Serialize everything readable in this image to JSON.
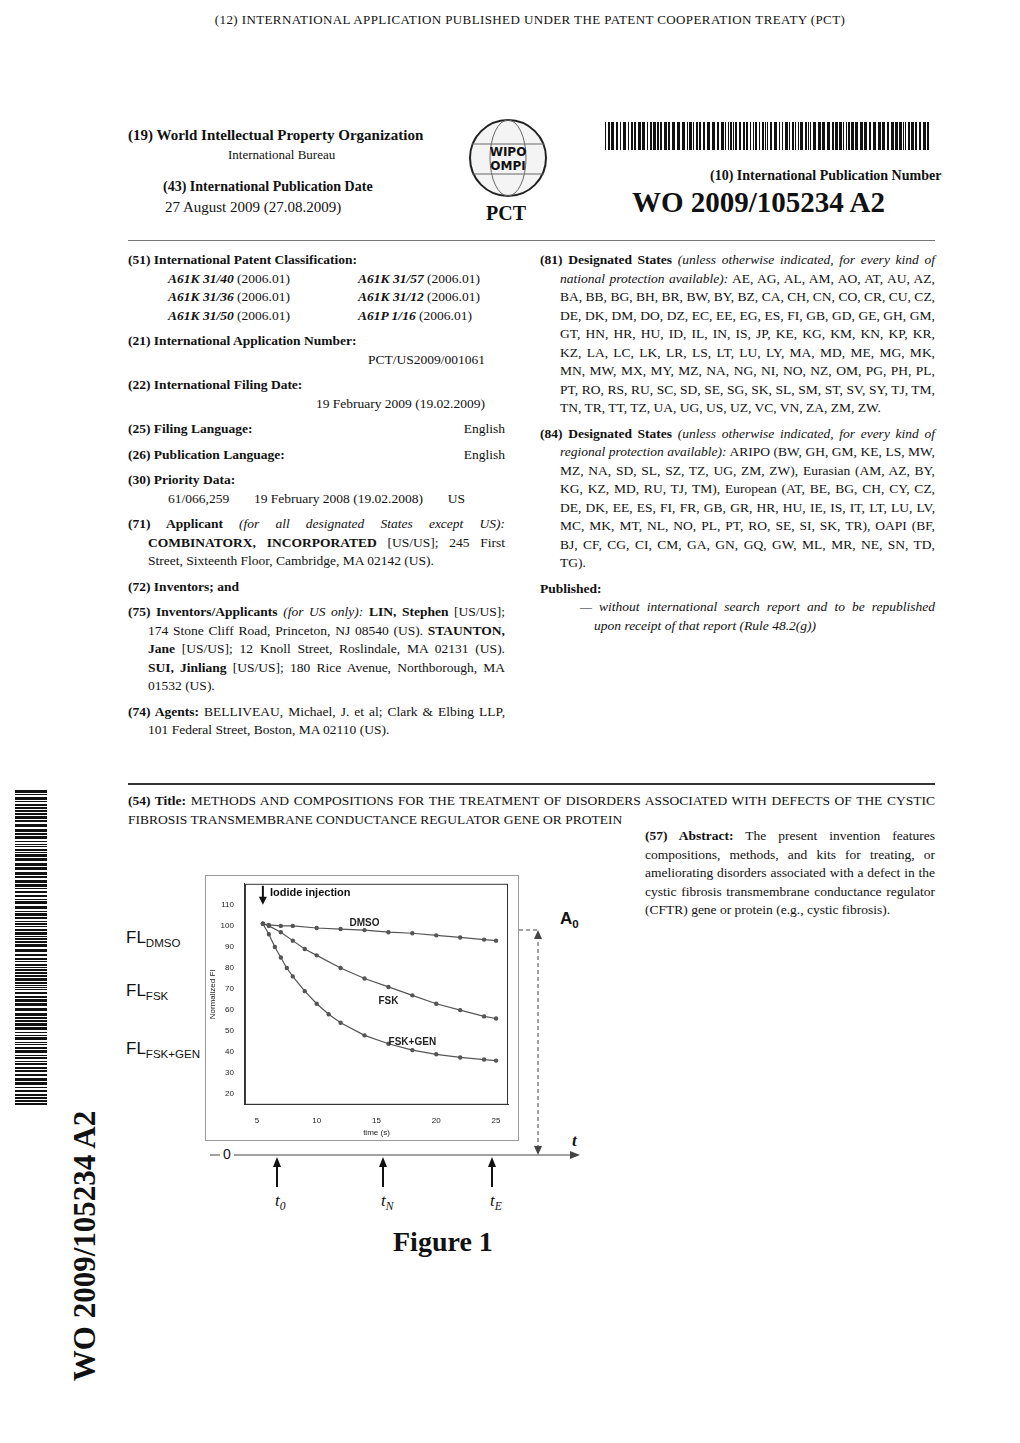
{
  "header": {
    "treaty": "(12) INTERNATIONAL APPLICATION PUBLISHED UNDER THE PATENT COOPERATION TREATY (PCT)",
    "office_num": "(19)",
    "office": "World Intellectual Property Organization",
    "bureau": "International Bureau",
    "logo": [
      "WIPO",
      "OMPI"
    ],
    "logo_caption": "PCT",
    "pub_number_label": "(10) International Publication Number",
    "pub_number": "WO 2009/105234 A2",
    "pub_date_label": "(43) International Publication Date",
    "pub_date": "27 August 2009 (27.08.2009)"
  },
  "left_fields": [
    {
      "num": "(51)",
      "label": "International Patent Classification:",
      "classes": [
        [
          "A61K 31/40",
          "(2006.01)"
        ],
        [
          "A61K 31/57",
          "(2006.01)"
        ],
        [
          "A61K 31/36",
          "(2006.01)"
        ],
        [
          "A61K 31/12",
          "(2006.01)"
        ],
        [
          "A61K 31/50",
          "(2006.01)"
        ],
        [
          "A61P 1/16",
          "(2006.01)"
        ]
      ]
    },
    {
      "num": "(21)",
      "label": "International Application Number:",
      "value": "PCT/US2009/001061"
    },
    {
      "num": "(22)",
      "label": "International Filing Date:",
      "value": "19 February 2009 (19.02.2009)"
    },
    {
      "num": "(25)",
      "label": "Filing Language:",
      "value": "English"
    },
    {
      "num": "(26)",
      "label": "Publication Language:",
      "value": "English"
    },
    {
      "num": "(30)",
      "label": "Priority Data:",
      "values": [
        "61/066,259",
        "19 February 2008 (19.02.2008)",
        "US"
      ]
    },
    {
      "num": "(71)",
      "label": "Applicant",
      "note": "(for all designated States except US):",
      "entries": [
        {
          "name": "COMBINATORX, INCORPORATED",
          "text": "[US/US]; 245 First Street, Sixteenth Floor, Cambridge, MA 02142 (US)."
        }
      ]
    },
    {
      "num": "(72)",
      "label": "Inventors; and"
    },
    {
      "num": "(75)",
      "label": "Inventors/Applicants",
      "note": "(for US only):",
      "entries": [
        {
          "name": "LIN, Stephen",
          "text": "[US/US]; 174 Stone Cliff Road, Princeton, NJ 08540 (US)."
        },
        {
          "name": "STAUNTON, Jane",
          "text": "[US/US]; 12 Knoll Street, Roslindale, MA 02131 (US)."
        },
        {
          "name": "SUI, Jinliang",
          "text": "[US/US]; 180 Rice Avenue, Northborough, MA 01532 (US)."
        }
      ]
    },
    {
      "num": "(74)",
      "label": "Agents:",
      "text": "BELLIVEAU, Michael, J. et al; Clark & Elbing LLP, 101 Federal Street, Boston, MA 02110 (US)."
    }
  ],
  "right_fields": [
    {
      "num": "(81)",
      "label": "Designated States",
      "note": "(unless otherwise indicated, for every kind of national protection available):",
      "text": "AE, AG, AL, AM, AO, AT, AU, AZ, BA, BB, BG, BH, BR, BW, BY, BZ, CA, CH, CN, CO, CR, CU, CZ, DE, DK, DM, DO, DZ, EC, EE, EG, ES, FI, GB, GD, GE, GH, GM, GT, HN, HR, HU, ID, IL, IN, IS, JP, KE, KG, KM, KN, KP, KR, KZ, LA, LC, LK, LR, LS, LT, LU, LY, MA, MD, ME, MG, MK, MN, MW, MX, MY, MZ, NA, NG, NI, NO, NZ, OM, PG, PH, PL, PT, RO, RS, RU, SC, SD, SE, SG, SK, SL, SM, ST, SV, SY, TJ, TM, TN, TR, TT, TZ, UA, UG, US, UZ, VC, VN, ZA, ZM, ZW."
    },
    {
      "num": "(84)",
      "label": "Designated States",
      "note": "(unless otherwise indicated, for every kind of regional protection available):",
      "text": "ARIPO (BW, GH, GM, KE, LS, MW, MZ, NA, SD, SL, SZ, TZ, UG, ZM, ZW), Eurasian (AM, AZ, BY, KG, KZ, MD, RU, TJ, TM), European (AT, BE, BG, CH, CY, CZ, DE, DK, EE, ES, FI, FR, GB, GR, HR, HU, IE, IS, IT, LT, LU, LV, MC, MK, MT, NL, NO, PL, PT, RO, SE, SI, SK, TR), OAPI (BF, BJ, CF, CG, CI, CM, GA, GN, GQ, GW, ML, MR, NE, SN, TD, TG)."
    },
    {
      "label": "Published:",
      "items": [
        "— without international search report and to be republished upon receipt of that report (Rule 48.2(g))"
      ]
    }
  ],
  "title_field": {
    "num": "(54)",
    "label": "Title:",
    "text": "METHODS AND COMPOSITIONS FOR THE TREATMENT OF DISORDERS ASSOCIATED WITH DEFECTS OF THE CYSTIC FIBROSIS TRANSMEMBRANE CONDUCTANCE REGULATOR GENE OR PROTEIN"
  },
  "abstract_field": {
    "num": "(57)",
    "label": "Abstract:",
    "text": "The present invention features compositions, methods, and kits for treating, or ameliorating disorders associated with a defect in the cystic fibrosis transmembrane conductance regulator (CFTR) gene or protein (e.g., cystic fibrosis)."
  },
  "figure": {
    "fl_labels": [
      {
        "main": "FL",
        "sub": "DMSO"
      },
      {
        "main": "FL",
        "sub": "FSK"
      },
      {
        "main": "FL",
        "sub": "FSK+GEN"
      }
    ],
    "amplitude": {
      "main": "A",
      "sub": "0"
    },
    "time_axis": {
      "origin": "0",
      "label": "t",
      "marks": [
        {
          "main": "t",
          "sub": "0"
        },
        {
          "main": "t",
          "sub": "N"
        },
        {
          "main": "t",
          "sub": "E"
        }
      ]
    },
    "caption": "Figure 1"
  },
  "chart_data": {
    "type": "line",
    "x_label": "time (s)",
    "y_label": "Normalized FI",
    "xlim": [
      4,
      26
    ],
    "xticks": [
      5,
      10,
      15,
      20,
      25
    ],
    "ylim": [
      15,
      120
    ],
    "yticks": [
      20,
      30,
      40,
      50,
      60,
      70,
      80,
      90,
      100,
      110
    ],
    "grid": false,
    "marker": "circle",
    "line_style": "solid",
    "annotations": [
      {
        "text": "Iodide injection",
        "x": 5.5
      }
    ],
    "series": [
      {
        "name": "DMSO",
        "color": "#555555",
        "x": [
          5.5,
          6,
          7,
          8,
          10,
          12,
          14,
          16,
          18,
          20,
          22,
          24,
          25
        ],
        "values": [
          101,
          100.5,
          100,
          100,
          99,
          98.5,
          98,
          97,
          96.5,
          95.5,
          94.5,
          93.5,
          93
        ]
      },
      {
        "name": "FSK",
        "color": "#555555",
        "x": [
          5.5,
          6,
          7,
          8,
          9,
          10,
          12,
          14,
          16,
          18,
          20,
          22,
          24,
          25
        ],
        "values": [
          101,
          100,
          97,
          93,
          89,
          86,
          80,
          75,
          71,
          67,
          63,
          60,
          57,
          56
        ]
      },
      {
        "name": "FSK+GEN",
        "color": "#555555",
        "x": [
          5.5,
          6,
          6.5,
          7,
          7.5,
          8,
          9,
          10,
          11,
          12,
          14,
          16,
          18,
          20,
          22,
          24,
          25
        ],
        "values": [
          101,
          96,
          90,
          85,
          80,
          76,
          69,
          63,
          58,
          54,
          48,
          44,
          41,
          39,
          37.5,
          36.5,
          36
        ]
      }
    ]
  }
}
